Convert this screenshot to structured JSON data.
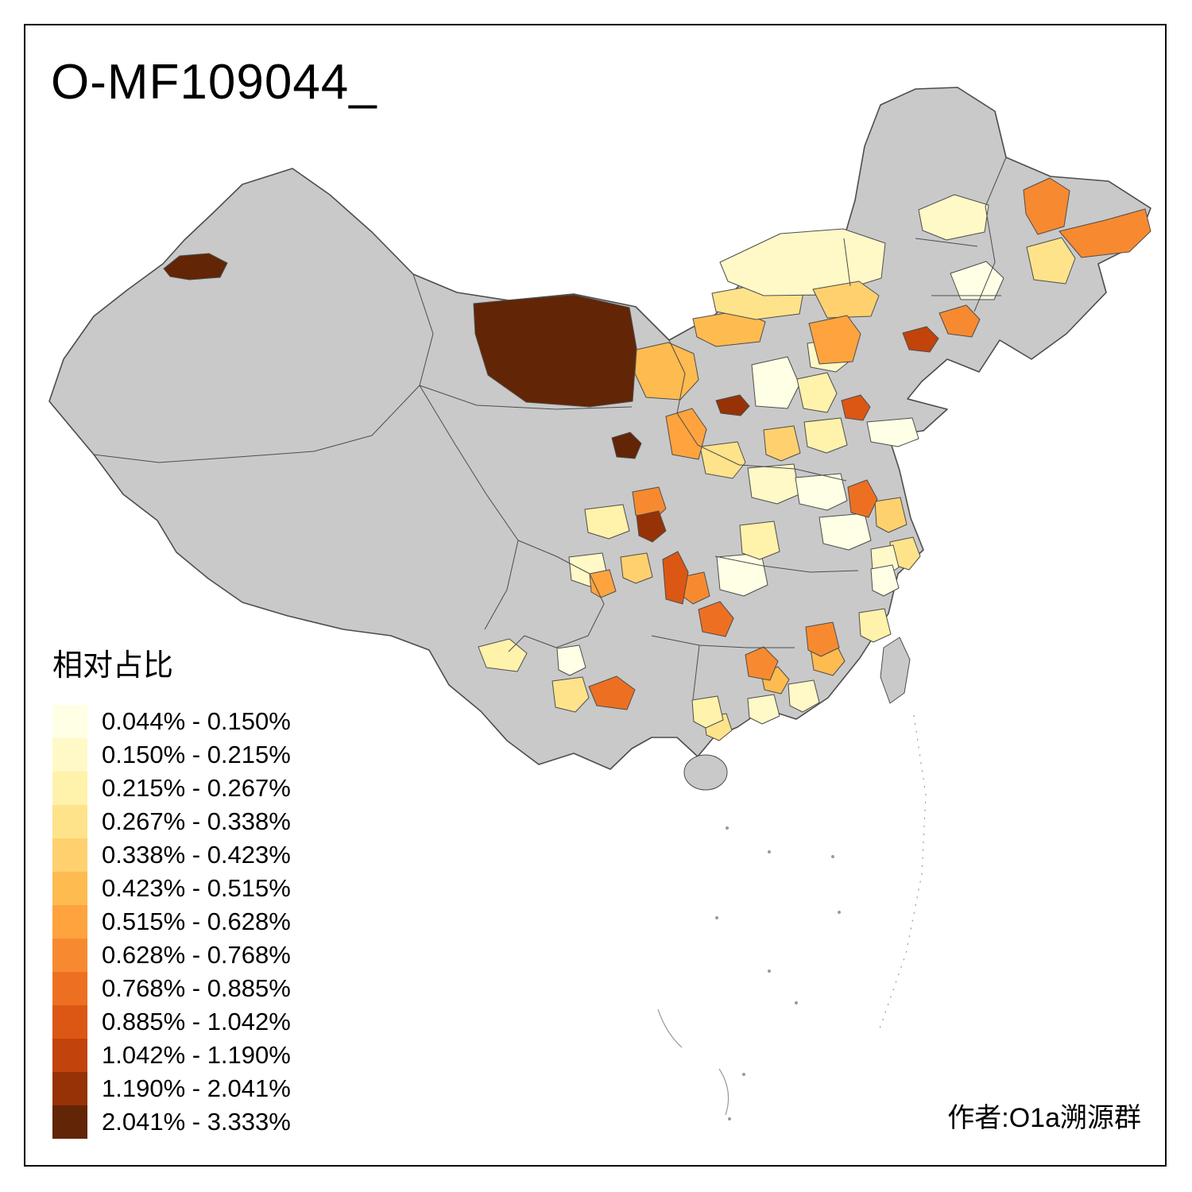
{
  "title": "O-MF109044_",
  "attribution": "作者:O1a溯源群",
  "legend": {
    "title": "相对占比",
    "items": [
      {
        "label": "0.044% - 0.150%",
        "color": "#FFFFE5"
      },
      {
        "label": "0.150% - 0.215%",
        "color": "#FFF9C8"
      },
      {
        "label": "0.215% - 0.267%",
        "color": "#FFF2AB"
      },
      {
        "label": "0.267% - 0.338%",
        "color": "#FEE38B"
      },
      {
        "label": "0.338% - 0.423%",
        "color": "#FED16E"
      },
      {
        "label": "0.423% - 0.515%",
        "color": "#FEBB50"
      },
      {
        "label": "0.515% - 0.628%",
        "color": "#FEA33E"
      },
      {
        "label": "0.628% - 0.768%",
        "color": "#F78A30"
      },
      {
        "label": "0.768% - 0.885%",
        "color": "#ED7022"
      },
      {
        "label": "0.885% - 1.042%",
        "color": "#DC5713"
      },
      {
        "label": "1.042% - 1.190%",
        "color": "#C2430B"
      },
      {
        "label": "1.190% - 2.041%",
        "color": "#963206"
      },
      {
        "label": "2.041% - 3.333%",
        "color": "#622505"
      }
    ]
  },
  "map": {
    "nodata_color": "#C9C9C9",
    "border_color": "#4D4D4D",
    "background": "#FFFFFF"
  }
}
